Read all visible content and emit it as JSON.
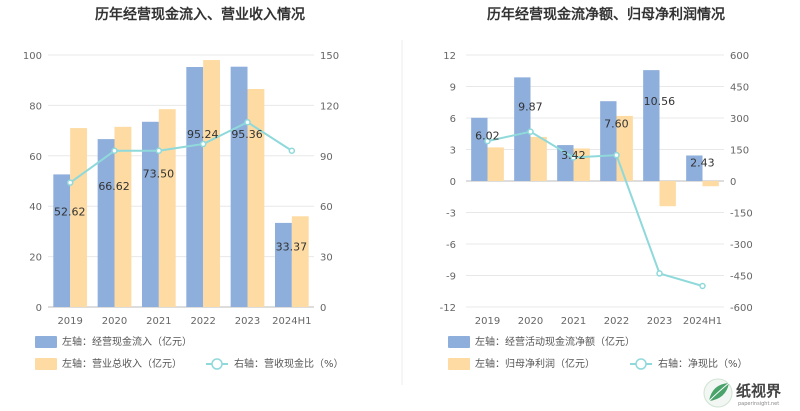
{
  "chart_data": [
    {
      "type": "bar",
      "title": "历年经营现金流入、营业收入情况",
      "categories": [
        "2019",
        "2020",
        "2021",
        "2022",
        "2023",
        "2024H1"
      ],
      "left_axis": {
        "min": 0,
        "max": 100,
        "ticks": [
          "0",
          "20",
          "40",
          "60",
          "80",
          "100"
        ]
      },
      "right_axis": {
        "min": 0,
        "max": 150,
        "ticks": [
          "0",
          "30",
          "60",
          "90",
          "120",
          "150"
        ]
      },
      "series": [
        {
          "name": "左轴：经营现金流入（亿元）",
          "kind": "bar",
          "axis": "left",
          "color": "#8eaedb",
          "values": [
            52.62,
            66.62,
            73.5,
            95.24,
            95.36,
            33.37
          ],
          "labels": [
            "52.62",
            "66.62",
            "73.50",
            "95.24",
            "95.36",
            "33.37"
          ]
        },
        {
          "name": "左轴：营业总收入（亿元）",
          "kind": "bar",
          "axis": "left",
          "color": "#fddba2",
          "values": [
            71,
            71.5,
            78.5,
            98,
            86.5,
            36
          ]
        },
        {
          "name": "右轴：营收现金比（%）",
          "kind": "line",
          "axis": "right",
          "color": "#8fd9db",
          "values": [
            74,
            93,
            93,
            97,
            110,
            93
          ]
        }
      ],
      "grid": true,
      "legend": "bottom-left"
    },
    {
      "type": "bar",
      "title": "历年经营现金流净额、归母净利润情况",
      "categories": [
        "2019",
        "2020",
        "2021",
        "2022",
        "2023",
        "2024H1"
      ],
      "left_axis": {
        "min": -12,
        "max": 12,
        "ticks": [
          "-12",
          "-9",
          "-6",
          "-3",
          "0",
          "3",
          "6",
          "9",
          "12"
        ]
      },
      "right_axis": {
        "min": -600,
        "max": 600,
        "ticks": [
          "-600",
          "-450",
          "-300",
          "-150",
          "0",
          "150",
          "300",
          "450",
          "600"
        ]
      },
      "series": [
        {
          "name": "左轴：经营活动现金流净额（亿元）",
          "kind": "bar",
          "axis": "left",
          "color": "#8eaedb",
          "values": [
            6.02,
            9.87,
            3.42,
            7.6,
            10.56,
            2.43
          ],
          "labels": [
            "6.02",
            "9.87",
            "3.42",
            "7.60",
            "10.56",
            "2.43"
          ]
        },
        {
          "name": "左轴：归母净利润（亿元）",
          "kind": "bar",
          "axis": "left",
          "color": "#fddba2",
          "values": [
            3.2,
            4.2,
            3.1,
            6.2,
            -2.4,
            -0.5
          ]
        },
        {
          "name": "右轴：净现比（%）",
          "kind": "line",
          "axis": "right",
          "color": "#8fd9db",
          "values": [
            190,
            235,
            112,
            123,
            -440,
            -500
          ]
        }
      ],
      "grid": true,
      "legend": "bottom-left"
    }
  ],
  "watermark": {
    "brand": "纸视界",
    "site": "paperinsight.net"
  }
}
